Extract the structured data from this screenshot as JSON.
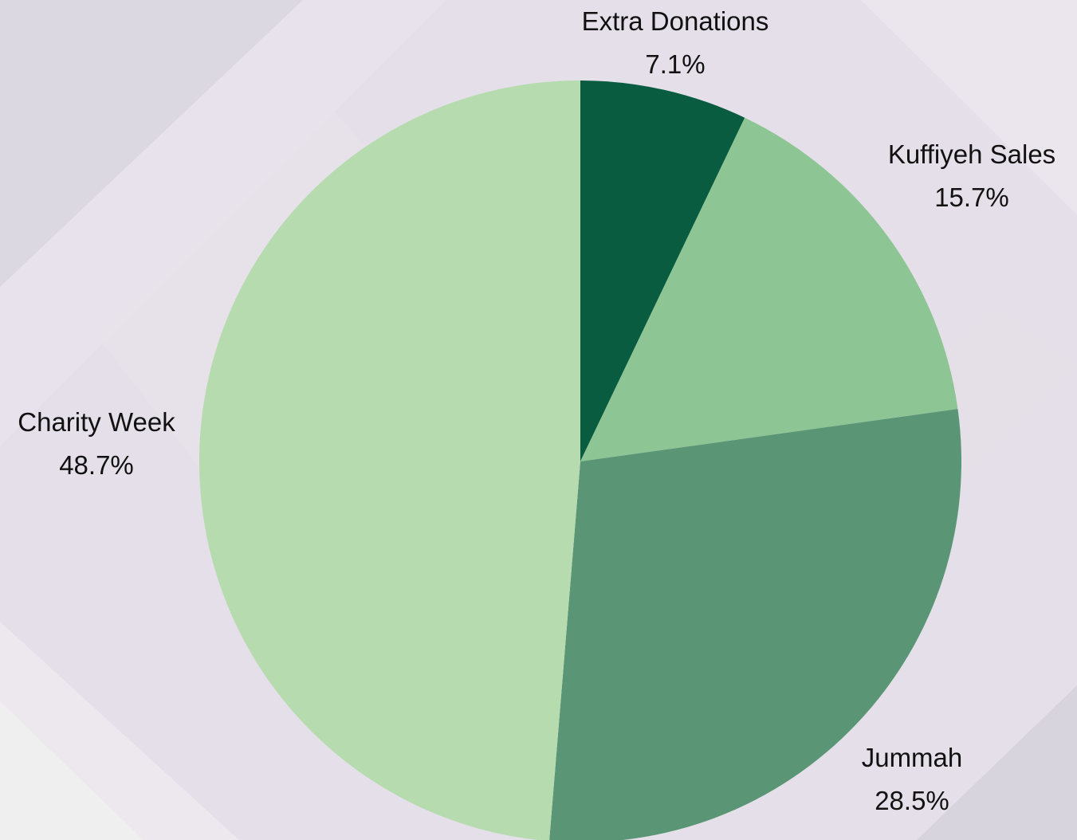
{
  "chart_data": {
    "type": "pie",
    "title": "",
    "start_angle_deg": 0,
    "direction": "clockwise",
    "slices": [
      {
        "label": "Extra Donations",
        "value": 7.1,
        "display": "7.1%",
        "color": "#0a5c40"
      },
      {
        "label": "Kuffiyeh Sales",
        "value": 15.7,
        "display": "15.7%",
        "color": "#8ec594"
      },
      {
        "label": "Jummah",
        "value": 28.5,
        "display": "28.5%",
        "color": "#5a9675"
      },
      {
        "label": "Charity Week",
        "value": 48.7,
        "display": "48.7%",
        "color": "#b6dbae"
      }
    ],
    "legend": "none",
    "background_color": "#e4dfe8"
  }
}
